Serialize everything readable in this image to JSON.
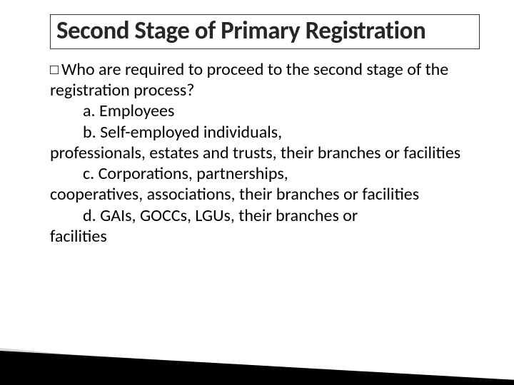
{
  "slide": {
    "title": "Second Stage of Primary Registration",
    "body": {
      "lead": "Who are required to proceed to the second stage of the registration process?",
      "items": {
        "a": "a.  Employees",
        "b": "b.  Self-employed individuals, professionals, estates and trusts, their branches or facilities",
        "c": "c.  Corporations, partnerships, cooperatives, associations, their branches or facilities",
        "d": "d.  GAIs, GOCCs, LGUs, their branches or facilities"
      }
    }
  },
  "style": {
    "title_color": "#262626",
    "body_color": "#000000",
    "border_color": "#333333",
    "bullet_border": "#3a3a3a",
    "background": "#ffffff",
    "wedge_color": "#000000",
    "title_fontsize": 35,
    "body_fontsize": 24
  }
}
